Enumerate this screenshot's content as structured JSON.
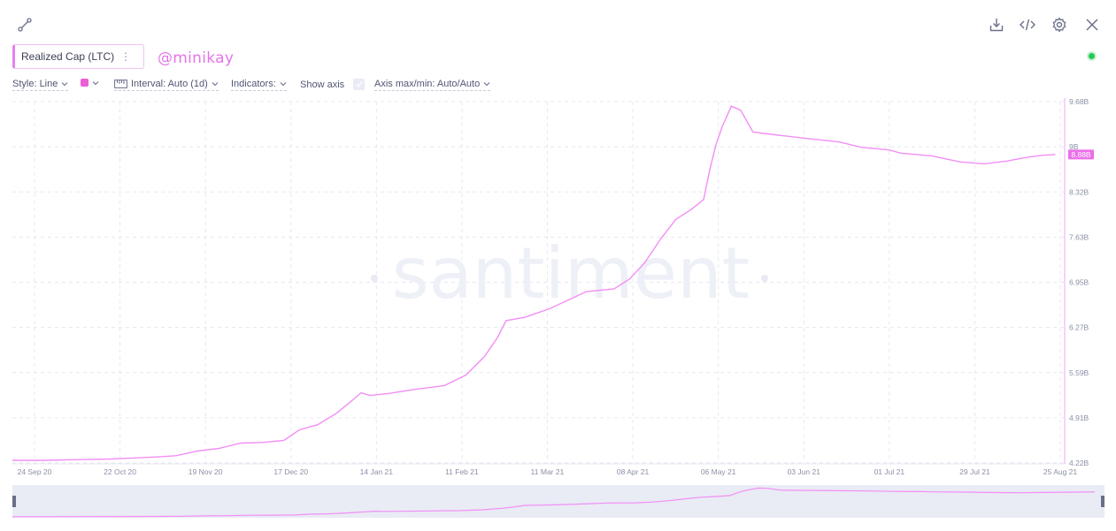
{
  "toolbar": {
    "share_icon": "share-link-icon",
    "download_icon": "download-icon",
    "embed_icon": "code-embed-icon",
    "settings_icon": "gear-icon",
    "close_icon": "close-icon"
  },
  "metric": {
    "label": "Realized Cap (LTC)",
    "menu": "⋮",
    "color": "#e581ed"
  },
  "author_watermark": "@minikay",
  "brand_watermark": "santiment",
  "controls": {
    "style": "Style: Line",
    "color": "#ec5ed6",
    "interval": "Interval: Auto (1d)",
    "indicators": "Indicators:",
    "show_axis": "Show axis",
    "axis_maxmin": "Axis max/min: Auto/Auto"
  },
  "chart_data": {
    "type": "line",
    "grid": true,
    "x_ticks": [
      "24 Sep 20",
      "22 Oct 20",
      "19 Nov 20",
      "17 Dec 20",
      "14 Jan 21",
      "11 Feb 21",
      "11 Mar 21",
      "08 Apr 21",
      "06 May 21",
      "03 Jun 21",
      "01 Jul 21",
      "29 Jul 21",
      "25 Aug 21"
    ],
    "y_ticks": [
      "9.68B",
      "9B",
      "8.32B",
      "7.63B",
      "6.95B",
      "6.27B",
      "5.59B",
      "4.91B",
      "4.22B"
    ],
    "ylim": [
      4.22,
      9.68
    ],
    "y_unit": "B",
    "xlim": [
      "2020-09-20",
      "2021-08-27"
    ],
    "current_value_label": "8.88B",
    "current_value": 8.88,
    "series": [
      {
        "color": "#f28ef5",
        "points": [
          [
            "2020-09-20",
            4.26
          ],
          [
            "2020-10-01",
            4.26
          ],
          [
            "2020-10-10",
            4.27
          ],
          [
            "2020-10-22",
            4.28
          ],
          [
            "2020-11-05",
            4.31
          ],
          [
            "2020-11-12",
            4.33
          ],
          [
            "2020-11-19",
            4.4
          ],
          [
            "2020-11-26",
            4.44
          ],
          [
            "2020-12-03",
            4.52
          ],
          [
            "2020-12-10",
            4.53
          ],
          [
            "2020-12-17",
            4.56
          ],
          [
            "2020-12-22",
            4.72
          ],
          [
            "2020-12-28",
            4.8
          ],
          [
            "2021-01-03",
            4.97
          ],
          [
            "2021-01-08",
            5.16
          ],
          [
            "2021-01-11",
            5.28
          ],
          [
            "2021-01-14",
            5.24
          ],
          [
            "2021-01-20",
            5.27
          ],
          [
            "2021-01-28",
            5.33
          ],
          [
            "2021-02-07",
            5.39
          ],
          [
            "2021-02-14",
            5.55
          ],
          [
            "2021-02-20",
            5.83
          ],
          [
            "2021-02-24",
            6.1
          ],
          [
            "2021-02-27",
            6.37
          ],
          [
            "2021-03-05",
            6.42
          ],
          [
            "2021-03-13",
            6.55
          ],
          [
            "2021-03-20",
            6.7
          ],
          [
            "2021-03-25",
            6.81
          ],
          [
            "2021-04-03",
            6.85
          ],
          [
            "2021-04-08",
            7.0
          ],
          [
            "2021-04-13",
            7.25
          ],
          [
            "2021-04-18",
            7.6
          ],
          [
            "2021-04-23",
            7.9
          ],
          [
            "2021-04-28",
            8.05
          ],
          [
            "2021-05-02",
            8.2
          ],
          [
            "2021-05-04",
            8.65
          ],
          [
            "2021-05-06",
            9.03
          ],
          [
            "2021-05-08",
            9.3
          ],
          [
            "2021-05-11",
            9.61
          ],
          [
            "2021-05-14",
            9.55
          ],
          [
            "2021-05-18",
            9.22
          ],
          [
            "2021-05-25",
            9.18
          ],
          [
            "2021-06-05",
            9.12
          ],
          [
            "2021-06-15",
            9.07
          ],
          [
            "2021-06-22",
            8.99
          ],
          [
            "2021-07-01",
            8.95
          ],
          [
            "2021-07-05",
            8.9
          ],
          [
            "2021-07-15",
            8.86
          ],
          [
            "2021-07-24",
            8.77
          ],
          [
            "2021-08-01",
            8.74
          ],
          [
            "2021-08-08",
            8.78
          ],
          [
            "2021-08-15",
            8.84
          ],
          [
            "2021-08-20",
            8.87
          ],
          [
            "2021-08-24",
            8.88
          ]
        ]
      }
    ]
  }
}
